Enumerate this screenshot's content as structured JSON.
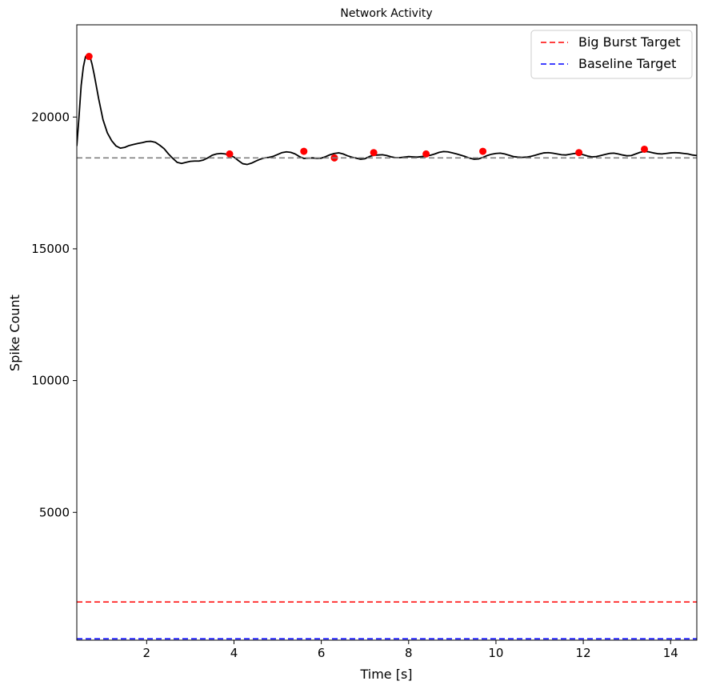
{
  "chart_data": {
    "type": "line",
    "title": "Network Activity",
    "xlabel": "Time [s]",
    "ylabel": "Spike Count",
    "xlim": [
      0.4,
      14.6
    ],
    "ylim": [
      150,
      23500
    ],
    "xticks": [
      2,
      4,
      6,
      8,
      10,
      12,
      14
    ],
    "yticks": [
      5000,
      10000,
      15000,
      20000
    ],
    "grid": false,
    "legend_position": "top-right",
    "series": [
      {
        "color": "#000000",
        "style": "solid",
        "x": [
          0.4,
          0.45,
          0.5,
          0.55,
          0.6,
          0.65,
          0.7,
          0.75,
          0.8,
          0.9,
          1.0,
          1.1,
          1.2,
          1.3,
          1.4,
          1.5,
          1.6,
          1.7,
          1.8,
          1.9,
          2.0,
          2.1,
          2.2,
          2.3,
          2.4,
          2.5,
          2.6,
          2.7,
          2.8,
          2.9,
          3.0,
          3.1,
          3.2,
          3.3,
          3.4,
          3.5,
          3.6,
          3.7,
          3.8,
          3.9,
          4.0,
          4.1,
          4.2,
          4.3,
          4.4,
          4.5,
          4.6,
          4.7,
          4.8,
          4.9,
          5.0,
          5.1,
          5.2,
          5.3,
          5.4,
          5.5,
          5.6,
          5.7,
          5.8,
          5.9,
          6.0,
          6.1,
          6.2,
          6.3,
          6.4,
          6.5,
          6.6,
          6.7,
          6.8,
          6.9,
          7.0,
          7.1,
          7.2,
          7.3,
          7.4,
          7.5,
          7.6,
          7.7,
          7.8,
          7.9,
          8.0,
          8.1,
          8.2,
          8.3,
          8.4,
          8.5,
          8.6,
          8.7,
          8.8,
          8.9,
          9.0,
          9.1,
          9.2,
          9.3,
          9.4,
          9.5,
          9.6,
          9.7,
          9.8,
          9.9,
          10.0,
          10.1,
          10.2,
          10.3,
          10.4,
          10.5,
          10.6,
          10.7,
          10.8,
          10.9,
          11.0,
          11.1,
          11.2,
          11.3,
          11.4,
          11.5,
          11.6,
          11.7,
          11.8,
          11.9,
          12.0,
          12.1,
          12.2,
          12.3,
          12.4,
          12.5,
          12.6,
          12.7,
          12.8,
          12.9,
          13.0,
          13.1,
          13.2,
          13.3,
          13.4,
          13.5,
          13.6,
          13.7,
          13.8,
          13.9,
          14.0,
          14.1,
          14.2,
          14.3,
          14.4,
          14.5,
          14.6
        ],
        "values": [
          18900,
          20000,
          21200,
          21900,
          22300,
          22200,
          22300,
          22000,
          21600,
          20700,
          19900,
          19400,
          19100,
          18900,
          18820,
          18850,
          18920,
          18960,
          19000,
          19030,
          19070,
          19080,
          19040,
          18930,
          18800,
          18600,
          18430,
          18280,
          18240,
          18280,
          18320,
          18330,
          18330,
          18370,
          18450,
          18550,
          18600,
          18620,
          18600,
          18550,
          18480,
          18350,
          18230,
          18200,
          18250,
          18330,
          18400,
          18450,
          18470,
          18510,
          18580,
          18650,
          18680,
          18660,
          18600,
          18500,
          18430,
          18440,
          18450,
          18430,
          18440,
          18500,
          18570,
          18620,
          18640,
          18600,
          18530,
          18480,
          18440,
          18400,
          18420,
          18500,
          18550,
          18560,
          18570,
          18540,
          18490,
          18460,
          18460,
          18480,
          18500,
          18490,
          18480,
          18500,
          18520,
          18550,
          18600,
          18660,
          18690,
          18680,
          18640,
          18600,
          18550,
          18500,
          18440,
          18400,
          18410,
          18470,
          18540,
          18590,
          18620,
          18630,
          18600,
          18550,
          18500,
          18480,
          18470,
          18480,
          18510,
          18550,
          18600,
          18640,
          18650,
          18630,
          18600,
          18570,
          18560,
          18590,
          18620,
          18610,
          18570,
          18520,
          18490,
          18500,
          18540,
          18580,
          18620,
          18630,
          18600,
          18560,
          18530,
          18540,
          18600,
          18660,
          18700,
          18680,
          18640,
          18610,
          18600,
          18620,
          18640,
          18650,
          18640,
          18620,
          18600,
          18560,
          18540
        ]
      },
      {
        "color": "#ff0000",
        "style": "markers",
        "x": [
          0.68,
          3.9,
          5.6,
          6.3,
          7.2,
          8.4,
          9.7,
          11.9,
          13.4
        ],
        "values": [
          22300,
          18600,
          18700,
          18450,
          18650,
          18600,
          18700,
          18650,
          18780
        ]
      },
      {
        "color": "#808080",
        "style": "dashed",
        "x": [
          0.4,
          14.6
        ],
        "values": [
          18450,
          18450
        ]
      },
      {
        "name": "Big Burst Target",
        "color": "#ff0000",
        "style": "dashed",
        "x": [
          0.4,
          14.6
        ],
        "values": [
          1600,
          1600
        ]
      },
      {
        "name": "Baseline Target",
        "color": "#0000ff",
        "style": "dashed",
        "x": [
          0.4,
          14.6
        ],
        "values": [
          200,
          200
        ]
      }
    ]
  }
}
